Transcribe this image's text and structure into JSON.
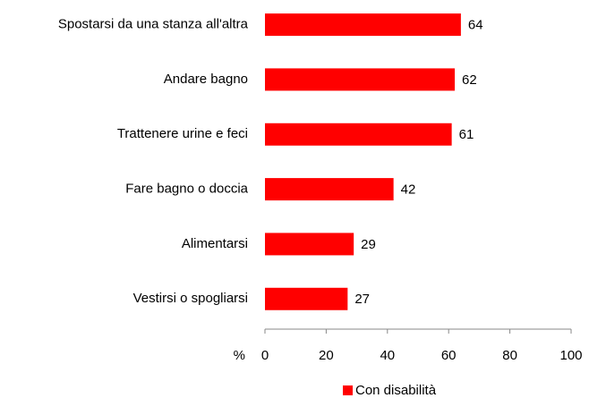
{
  "chart_data": {
    "type": "bar",
    "orientation": "horizontal",
    "categories": [
      "Spostarsi da una stanza all'altra",
      "Andare bagno",
      "Trattenere urine e feci",
      "Fare bagno o doccia",
      "Alimentarsi",
      "Vestirsi o spogliarsi"
    ],
    "series": [
      {
        "name": "Con disabilità",
        "color": "#ff0000",
        "values": [
          64,
          62,
          61,
          42,
          29,
          27
        ]
      }
    ],
    "x_label": "%",
    "xlim": [
      0,
      100
    ],
    "xticks": [
      0,
      20,
      40,
      60,
      80,
      100
    ],
    "legend": "bottom"
  }
}
